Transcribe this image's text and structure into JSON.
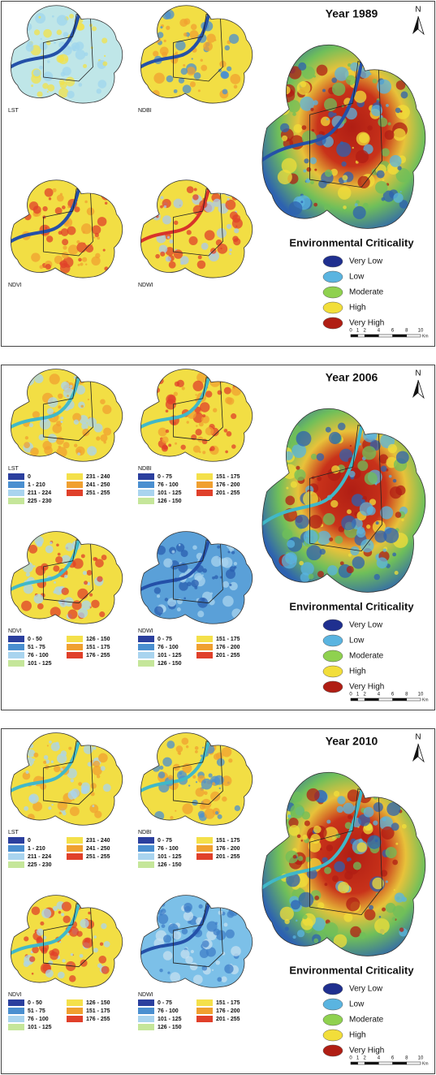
{
  "panels": [
    {
      "title": "Year 1989",
      "north": "N",
      "maps": [
        {
          "label": "LST"
        },
        {
          "label": "NDBI"
        },
        {
          "label": "NDVI"
        },
        {
          "label": "NDWI"
        }
      ],
      "criticality": {
        "title": "Environmental Criticality",
        "items": [
          {
            "label": "Very Low",
            "color": "#1f2f8f"
          },
          {
            "label": "Low",
            "color": "#5ab4e0"
          },
          {
            "label": "Moderate",
            "color": "#8fd14f"
          },
          {
            "label": "High",
            "color": "#f2de3a"
          },
          {
            "label": "Very High",
            "color": "#b01e14"
          }
        ]
      },
      "scale": {
        "ticks": [
          0,
          1,
          2,
          4,
          6,
          8,
          10
        ],
        "unit": "Km"
      }
    },
    {
      "title": "Year 2006",
      "north": "N",
      "maps": [
        {
          "label": "LST",
          "legend": [
            {
              "label": "0",
              "color": "#2b3f9e"
            },
            {
              "label": "1 - 210",
              "color": "#4a8fd0"
            },
            {
              "label": "211 - 224",
              "color": "#a9d4ef"
            },
            {
              "label": "225 - 230",
              "color": "#c5e69a"
            },
            {
              "label": "231 - 240",
              "color": "#f4e04a"
            },
            {
              "label": "241 - 250",
              "color": "#f0a030"
            },
            {
              "label": "251 - 255",
              "color": "#e0402a"
            }
          ]
        },
        {
          "label": "NDBI",
          "legend": [
            {
              "label": "0 - 75",
              "color": "#2b3f9e"
            },
            {
              "label": "76 - 100",
              "color": "#4a8fd0"
            },
            {
              "label": "101 - 125",
              "color": "#a9d4ef"
            },
            {
              "label": "126 - 150",
              "color": "#c5e69a"
            },
            {
              "label": "151 - 175",
              "color": "#f4e04a"
            },
            {
              "label": "176 - 200",
              "color": "#f0a030"
            },
            {
              "label": "201 - 255",
              "color": "#e0402a"
            }
          ]
        },
        {
          "label": "NDVI",
          "legend": [
            {
              "label": "0 - 50",
              "color": "#2b3f9e"
            },
            {
              "label": "51 - 75",
              "color": "#4a8fd0"
            },
            {
              "label": "76 - 100",
              "color": "#a9d4ef"
            },
            {
              "label": "101 - 125",
              "color": "#c5e69a"
            },
            {
              "label": "126 - 150",
              "color": "#f4e04a"
            },
            {
              "label": "151 - 175",
              "color": "#f0a030"
            },
            {
              "label": "176 - 255",
              "color": "#e0402a"
            }
          ]
        },
        {
          "label": "NDWI",
          "legend": [
            {
              "label": "0 - 75",
              "color": "#2b3f9e"
            },
            {
              "label": "76 - 100",
              "color": "#4a8fd0"
            },
            {
              "label": "101 - 125",
              "color": "#a9d4ef"
            },
            {
              "label": "126 - 150",
              "color": "#c5e69a"
            },
            {
              "label": "151 - 175",
              "color": "#f4e04a"
            },
            {
              "label": "176 - 200",
              "color": "#f0a030"
            },
            {
              "label": "201 - 255",
              "color": "#e0402a"
            }
          ]
        }
      ],
      "criticality": {
        "title": "Environmental Criticality",
        "items": [
          {
            "label": "Very Low",
            "color": "#1f2f8f"
          },
          {
            "label": "Low",
            "color": "#5ab4e0"
          },
          {
            "label": "Moderate",
            "color": "#8fd14f"
          },
          {
            "label": "High",
            "color": "#f2de3a"
          },
          {
            "label": "Very High",
            "color": "#b01e14"
          }
        ]
      },
      "scale": {
        "ticks": [
          0,
          1,
          2,
          4,
          6,
          8,
          10
        ],
        "unit": "Km"
      }
    },
    {
      "title": "Year 2010",
      "north": "N",
      "maps": [
        {
          "label": "LST",
          "legend": [
            {
              "label": "0",
              "color": "#2b3f9e"
            },
            {
              "label": "1 - 210",
              "color": "#4a8fd0"
            },
            {
              "label": "211 - 224",
              "color": "#a9d4ef"
            },
            {
              "label": "225 - 230",
              "color": "#c5e69a"
            },
            {
              "label": "231 - 240",
              "color": "#f4e04a"
            },
            {
              "label": "241 - 250",
              "color": "#f0a030"
            },
            {
              "label": "251 - 255",
              "color": "#e0402a"
            }
          ]
        },
        {
          "label": "NDBI",
          "legend": [
            {
              "label": "0 - 75",
              "color": "#2b3f9e"
            },
            {
              "label": "76 - 100",
              "color": "#4a8fd0"
            },
            {
              "label": "101 - 125",
              "color": "#a9d4ef"
            },
            {
              "label": "126 - 150",
              "color": "#c5e69a"
            },
            {
              "label": "151 - 175",
              "color": "#f4e04a"
            },
            {
              "label": "176 - 200",
              "color": "#f0a030"
            },
            {
              "label": "201 - 255",
              "color": "#e0402a"
            }
          ]
        },
        {
          "label": "NDVI",
          "legend": [
            {
              "label": "0 - 50",
              "color": "#2b3f9e"
            },
            {
              "label": "51 - 75",
              "color": "#4a8fd0"
            },
            {
              "label": "76 - 100",
              "color": "#a9d4ef"
            },
            {
              "label": "101 - 125",
              "color": "#c5e69a"
            },
            {
              "label": "126 - 150",
              "color": "#f4e04a"
            },
            {
              "label": "151 - 175",
              "color": "#f0a030"
            },
            {
              "label": "176 - 255",
              "color": "#e0402a"
            }
          ]
        },
        {
          "label": "NDWI",
          "legend": [
            {
              "label": "0 - 75",
              "color": "#2b3f9e"
            },
            {
              "label": "76 - 100",
              "color": "#4a8fd0"
            },
            {
              "label": "101 - 125",
              "color": "#a9d4ef"
            },
            {
              "label": "126 - 150",
              "color": "#c5e69a"
            },
            {
              "label": "151 - 175",
              "color": "#f4e04a"
            },
            {
              "label": "176 - 200",
              "color": "#f0a030"
            },
            {
              "label": "201 - 255",
              "color": "#e0402a"
            }
          ]
        }
      ],
      "criticality": {
        "title": "Environmental Criticality",
        "items": [
          {
            "label": "Very Low",
            "color": "#1f2f8f"
          },
          {
            "label": "Low",
            "color": "#5ab4e0"
          },
          {
            "label": "Moderate",
            "color": "#8fd14f"
          },
          {
            "label": "High",
            "color": "#f2de3a"
          },
          {
            "label": "Very High",
            "color": "#b01e14"
          }
        ]
      },
      "scale": {
        "ticks": [
          0,
          1,
          2,
          4,
          6,
          8,
          10
        ],
        "unit": "Km"
      }
    }
  ]
}
